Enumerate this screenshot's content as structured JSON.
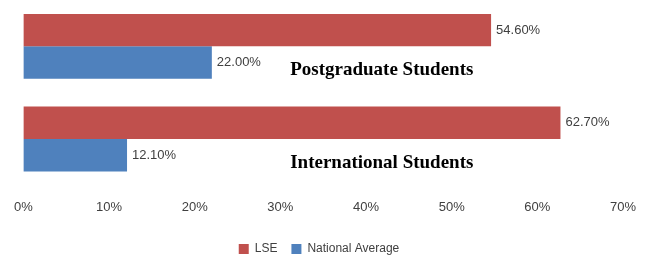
{
  "chart_data": {
    "type": "bar",
    "orientation": "horizontal",
    "categories": [
      "Postgraduate Students",
      "International Students"
    ],
    "series": [
      {
        "name": "LSE",
        "color": "#c0504d",
        "values": [
          54.6,
          62.7
        ],
        "value_labels": [
          "54.60%",
          "62.70%"
        ]
      },
      {
        "name": "National Average",
        "color": "#4f81bd",
        "values": [
          22.0,
          12.1
        ],
        "value_labels": [
          "22.00%",
          "12.10%"
        ]
      }
    ],
    "xlim": [
      0,
      70
    ],
    "xticks": [
      {
        "value": 0,
        "label": "0%"
      },
      {
        "value": 10,
        "label": "10%"
      },
      {
        "value": 20,
        "label": "20%"
      },
      {
        "value": 30,
        "label": "30%"
      },
      {
        "value": 40,
        "label": "40%"
      },
      {
        "value": 50,
        "label": "50%"
      },
      {
        "value": 60,
        "label": "60%"
      },
      {
        "value": 70,
        "label": "70%"
      }
    ],
    "grid": false,
    "legend": "bottom",
    "data_labels": true,
    "tick_labels": "x"
  }
}
